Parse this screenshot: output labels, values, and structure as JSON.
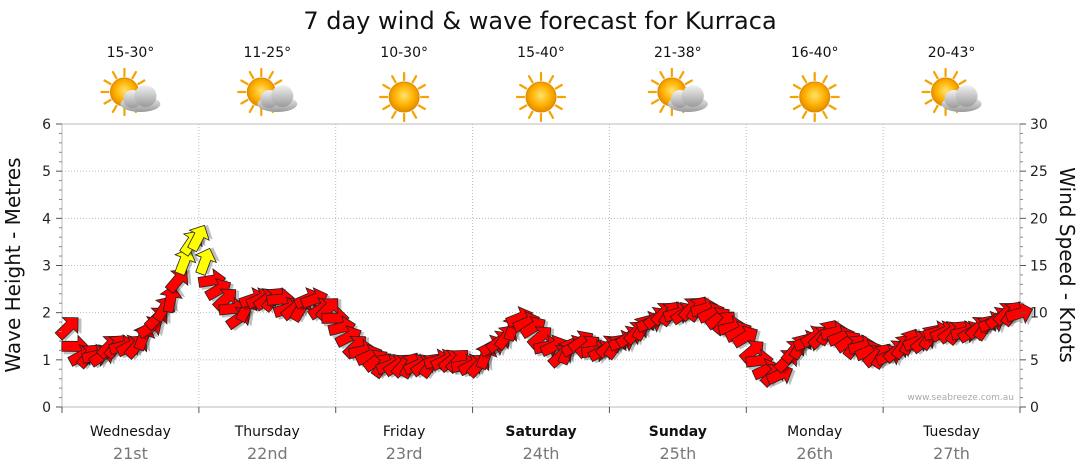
{
  "chart_data": {
    "type": "line",
    "title": "7 day wind & wave forecast for Kurraca",
    "ylabel": "Wave Height - Metres",
    "y2label": "Wind Speed - Knots",
    "ylim": [
      0,
      6
    ],
    "y2lim": [
      0,
      30
    ],
    "yticks": [
      "0",
      "1",
      "2",
      "3",
      "4",
      "5",
      "6"
    ],
    "y2ticks": [
      "0",
      "5",
      "10",
      "15",
      "20",
      "25",
      "30"
    ],
    "grid": true,
    "credit": "www.seabreeze.com.au",
    "days": [
      {
        "name": "Wednesday",
        "date": "21st",
        "temp": "15-30°",
        "icon": "partly-cloudy-icon",
        "bold": false
      },
      {
        "name": "Thursday",
        "date": "22nd",
        "temp": "11-25°",
        "icon": "partly-cloudy-icon",
        "bold": false
      },
      {
        "name": "Friday",
        "date": "23rd",
        "temp": "10-30°",
        "icon": "sun-icon",
        "bold": false
      },
      {
        "name": "Saturday",
        "date": "24th",
        "temp": "15-40°",
        "icon": "sun-icon",
        "bold": true
      },
      {
        "name": "Sunday",
        "date": "25th",
        "temp": "21-38°",
        "icon": "partly-cloudy-icon",
        "bold": true
      },
      {
        "name": "Monday",
        "date": "26th",
        "temp": "16-40°",
        "icon": "sun-icon",
        "bold": false
      },
      {
        "name": "Tuesday",
        "date": "27th",
        "temp": "20-43°",
        "icon": "partly-cloudy-icon",
        "bold": false
      }
    ],
    "series": [
      {
        "type": "wind-arrows",
        "x": [
          0,
          0.05,
          0.1,
          0.15,
          0.2,
          0.25,
          0.3,
          0.35,
          0.4,
          0.45,
          0.5,
          0.55,
          0.6,
          0.65,
          0.7,
          0.75,
          0.8,
          0.85,
          0.9,
          0.95,
          1.0,
          1.05,
          1.1,
          1.15,
          1.2,
          1.25,
          1.3,
          1.35,
          1.4,
          1.45,
          1.5,
          1.55,
          1.6,
          1.65,
          1.7,
          1.75,
          1.8,
          1.85,
          1.9,
          1.95,
          2.0,
          2.05,
          2.1,
          2.15,
          2.2,
          2.25,
          2.3,
          2.35,
          2.4,
          2.45,
          2.5,
          2.55,
          2.6,
          2.65,
          2.7,
          2.75,
          2.8,
          2.85,
          2.9,
          2.95,
          3.0,
          3.05,
          3.1,
          3.15,
          3.2,
          3.25,
          3.3,
          3.35,
          3.4,
          3.45,
          3.5,
          3.55,
          3.6,
          3.65,
          3.7,
          3.75,
          3.8,
          3.85,
          3.9,
          3.95,
          4.0,
          4.05,
          4.1,
          4.15,
          4.2,
          4.25,
          4.3,
          4.35,
          4.4,
          4.45,
          4.5,
          4.55,
          4.6,
          4.65,
          4.7,
          4.75,
          4.8,
          4.85,
          4.9,
          4.95,
          5.0,
          5.05,
          5.1,
          5.15,
          5.2,
          5.25,
          5.3,
          5.35,
          5.4,
          5.45,
          5.5,
          5.55,
          5.6,
          5.65,
          5.7,
          5.75,
          5.8,
          5.85,
          5.9,
          5.95,
          6.0,
          6.05,
          6.1,
          6.15,
          6.2,
          6.25,
          6.3,
          6.35,
          6.4,
          6.45,
          6.5,
          6.55,
          6.6,
          6.65,
          6.7,
          6.75,
          6.8,
          6.85,
          6.9,
          6.95
        ],
        "wind_knots": [
          8,
          6,
          5,
          5,
          5,
          5,
          6,
          6,
          6,
          6,
          6,
          7,
          8,
          9,
          10,
          11,
          13,
          15,
          17,
          17.5,
          15,
          13,
          12,
          11,
          10,
          9,
          10,
          11,
          11,
          11,
          11,
          11,
          10,
          10,
          10,
          11,
          11,
          10,
          10,
          9,
          8,
          7,
          6,
          5.5,
          5,
          4.5,
          4,
          4,
          4,
          4,
          4,
          4,
          4,
          4,
          4.5,
          4.5,
          4.5,
          4.5,
          4,
          4,
          4,
          5,
          6,
          6.5,
          7,
          8,
          9,
          8.5,
          8,
          7,
          6,
          6,
          5,
          5.5,
          6,
          6.5,
          6,
          5.5,
          5.5,
          6,
          6,
          6.5,
          7,
          7.5,
          8,
          8.5,
          9,
          9.5,
          9.5,
          9.5,
          9.5,
          10,
          10,
          10,
          9.5,
          9,
          8.5,
          8,
          7.5,
          7,
          5.5,
          4.5,
          3.5,
          3,
          3,
          4.5,
          5.5,
          6,
          6.5,
          7,
          7,
          7.5,
          7.5,
          7,
          6.5,
          6,
          6,
          5.5,
          5,
          5,
          5,
          5.5,
          6,
          6.5,
          6.5,
          6.5,
          7,
          7.5,
          7.5,
          7.5,
          7.5,
          7.5,
          7.5,
          8,
          8,
          8.5,
          9,
          9.5,
          9.5,
          9.5
        ]
      }
    ]
  }
}
